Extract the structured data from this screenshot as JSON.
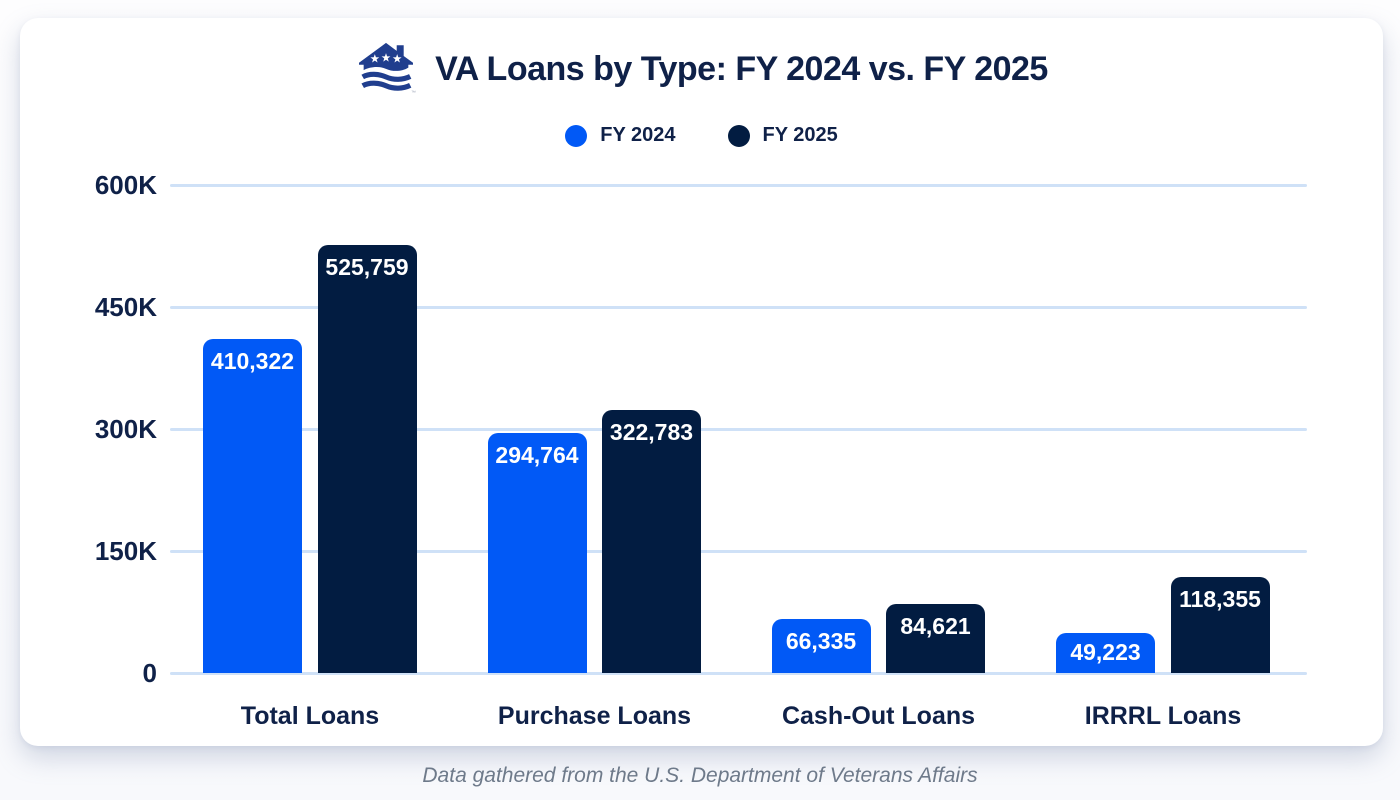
{
  "page": {
    "footer_note": "Data gathered from the U.S. Department of Veterans Affairs"
  },
  "header": {
    "title": "VA Loans by Type: FY 2024 vs. FY 2025",
    "logo_name": "va-house-logo",
    "logo_trademark": "™"
  },
  "legend": {
    "items": [
      {
        "label": "FY 2024",
        "color": "#0159f6"
      },
      {
        "label": "FY 2025",
        "color": "#021c41"
      }
    ]
  },
  "chart_data": {
    "type": "bar",
    "title": "VA Loans by Type: FY 2024 vs. FY 2025",
    "categories": [
      "Total Loans",
      "Purchase Loans",
      "Cash-Out Loans",
      "IRRRL Loans"
    ],
    "series": [
      {
        "name": "FY 2024",
        "color": "#0159f6",
        "values": [
          410322,
          294764,
          66335,
          49223
        ],
        "value_labels": [
          "410,322",
          "294,764",
          "66,335",
          "49,223"
        ]
      },
      {
        "name": "FY 2025",
        "color": "#021c41",
        "values": [
          525759,
          322783,
          84621,
          118355
        ],
        "value_labels": [
          "525,759",
          "322,783",
          "84,621",
          "118,355"
        ]
      }
    ],
    "xlabel": "",
    "ylabel": "",
    "ylim": [
      0,
      600000
    ],
    "yticks": [
      {
        "value": 600000,
        "label": "600K"
      },
      {
        "value": 450000,
        "label": "450K"
      },
      {
        "value": 300000,
        "label": "300K"
      },
      {
        "value": 150000,
        "label": "150K"
      },
      {
        "value": 0,
        "label": "0"
      }
    ],
    "grid": true,
    "gridline_color": "#cfe1f7",
    "legend_position": "top",
    "source_note": "Data gathered from the U.S. Department of Veterans Affairs"
  },
  "colors": {
    "title_text": "#0f2148",
    "axis_text": "#0f2148",
    "bar_label_text": "#ffffff",
    "footer_text": "#6e7a8a",
    "card_background": "#ffffff",
    "logo_navy": "#203e8e"
  }
}
